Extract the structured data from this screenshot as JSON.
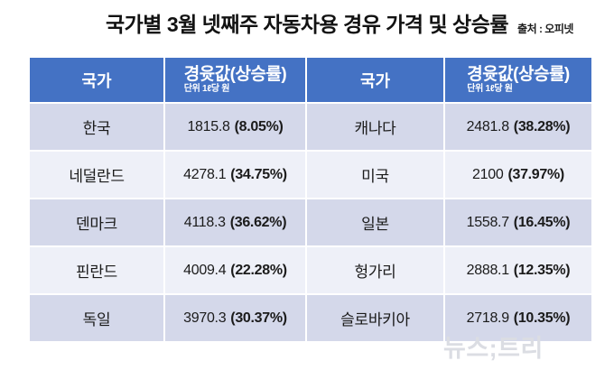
{
  "title": "국가별 3월 넷째주 자동차용 경유 가격 및 상승률",
  "source": "출처 : 오피넷",
  "watermark": "뉴스;트리",
  "colors": {
    "header_bg": "#4472C4",
    "row_odd": "#D4D8EA",
    "row_even": "#EEF0F8",
    "watermark": "#DBDDE3"
  },
  "table": {
    "header": {
      "country": "국가",
      "value": "경윳값(상승률)",
      "unit": "단위 1ℓ당 원"
    },
    "rows": [
      {
        "left": {
          "country": "한국",
          "value": "1815.8",
          "rate": "(8.05%)"
        },
        "right": {
          "country": "캐나다",
          "value": "2481.8",
          "rate": "(38.28%)"
        }
      },
      {
        "left": {
          "country": "네덜란드",
          "value": "4278.1",
          "rate": "(34.75%)"
        },
        "right": {
          "country": "미국",
          "value": "2100",
          "rate": "(37.97%)"
        }
      },
      {
        "left": {
          "country": "덴마크",
          "value": "4118.3",
          "rate": "(36.62%)"
        },
        "right": {
          "country": "일본",
          "value": "1558.7",
          "rate": "(16.45%)"
        }
      },
      {
        "left": {
          "country": "핀란드",
          "value": "4009.4",
          "rate": "(22.28%)"
        },
        "right": {
          "country": "헝가리",
          "value": "2888.1",
          "rate": "(12.35%)"
        }
      },
      {
        "left": {
          "country": "독일",
          "value": "3970.3",
          "rate": "(30.37%)"
        },
        "right": {
          "country": "슬로바키아",
          "value": "2718.9",
          "rate": "(10.35%)"
        }
      }
    ]
  },
  "chart_data": {
    "type": "table",
    "title": "국가별 3월 넷째주 자동차용 경유 가격 및 상승률",
    "source": "출처 : 오피넷",
    "unit": "단위 1ℓ당 원",
    "columns": [
      "국가",
      "경윳값(상승률)",
      "국가",
      "경윳값(상승률)"
    ],
    "rows": [
      [
        "한국",
        "1815.8 (8.05%)",
        "캐나다",
        "2481.8 (38.28%)"
      ],
      [
        "네덜란드",
        "4278.1 (34.75%)",
        "미국",
        "2100 (37.97%)"
      ],
      [
        "덴마크",
        "4118.3 (36.62%)",
        "일본",
        "1558.7 (16.45%)"
      ],
      [
        "핀란드",
        "4009.4 (22.28%)",
        "헝가리",
        "2888.1 (12.35%)"
      ],
      [
        "독일",
        "3970.3 (30.37%)",
        "슬로바키아",
        "2718.9 (10.35%)"
      ]
    ],
    "prices_krw_per_liter": {
      "한국": 1815.8,
      "네덜란드": 4278.1,
      "덴마크": 4118.3,
      "핀란드": 4009.4,
      "독일": 3970.3,
      "캐나다": 2481.8,
      "미국": 2100,
      "일본": 1558.7,
      "헝가리": 2888.1,
      "슬로바키아": 2718.9
    },
    "increase_rate_pct": {
      "한국": 8.05,
      "네덜란드": 34.75,
      "덴마크": 36.62,
      "핀란드": 22.28,
      "독일": 30.37,
      "캐나다": 38.28,
      "미국": 37.97,
      "일본": 16.45,
      "헝가리": 12.35,
      "슬로바키아": 10.35
    }
  }
}
